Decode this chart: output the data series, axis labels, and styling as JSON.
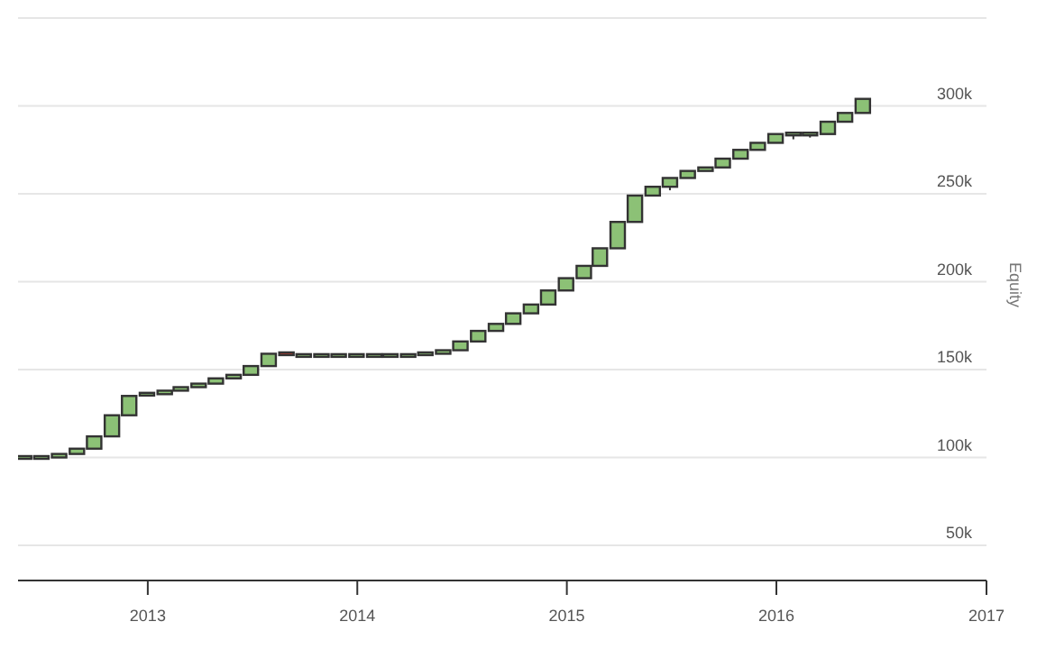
{
  "chart_data": {
    "type": "candlestick",
    "ylabel": "Equity",
    "x": [
      "2012-06",
      "2012-07",
      "2012-08",
      "2012-09",
      "2012-10",
      "2012-11",
      "2012-12",
      "2013-01",
      "2013-02",
      "2013-03",
      "2013-04",
      "2013-05",
      "2013-06",
      "2013-07",
      "2013-08",
      "2013-09",
      "2013-10",
      "2013-11",
      "2013-12",
      "2014-01",
      "2014-02",
      "2014-03",
      "2014-04",
      "2014-05",
      "2014-06",
      "2014-07",
      "2014-08",
      "2014-09",
      "2014-10",
      "2014-11",
      "2014-12",
      "2015-01",
      "2015-02",
      "2015-03",
      "2015-04",
      "2015-05",
      "2015-06",
      "2015-07",
      "2015-08",
      "2015-09",
      "2015-10",
      "2015-11",
      "2015-12",
      "2016-01",
      "2016-02",
      "2016-03",
      "2016-04",
      "2016-05",
      "2016-06"
    ],
    "ohlc": [
      [
        100000,
        100000,
        100000,
        100000
      ],
      [
        100000,
        100000,
        100000,
        100000
      ],
      [
        100000,
        102000,
        100000,
        102000
      ],
      [
        102000,
        105000,
        102000,
        105000
      ],
      [
        105000,
        112000,
        105000,
        112000
      ],
      [
        112000,
        124000,
        112000,
        124000
      ],
      [
        124000,
        135000,
        124000,
        135000
      ],
      [
        135000,
        136000,
        135000,
        136000
      ],
      [
        136000,
        138000,
        136000,
        138000
      ],
      [
        138000,
        140000,
        138000,
        140000
      ],
      [
        140000,
        142000,
        140000,
        142000
      ],
      [
        142000,
        145000,
        142000,
        145000
      ],
      [
        145000,
        147000,
        145000,
        147000
      ],
      [
        147000,
        152000,
        147000,
        152000
      ],
      [
        152000,
        159000,
        152000,
        159000
      ],
      [
        159000,
        159000,
        158000,
        158000
      ],
      [
        158000,
        158000,
        158000,
        158000
      ],
      [
        158000,
        158000,
        158000,
        158000
      ],
      [
        158000,
        158000,
        158000,
        158000
      ],
      [
        158000,
        159000,
        157000,
        158000
      ],
      [
        158000,
        158000,
        158000,
        158000
      ],
      [
        158000,
        158000,
        158000,
        158000
      ],
      [
        158000,
        158000,
        158000,
        158000
      ],
      [
        158000,
        159000,
        158000,
        159000
      ],
      [
        159000,
        161000,
        159000,
        161000
      ],
      [
        161000,
        166000,
        161000,
        166000
      ],
      [
        166000,
        172000,
        166000,
        172000
      ],
      [
        172000,
        176000,
        172000,
        176000
      ],
      [
        176000,
        182000,
        176000,
        182000
      ],
      [
        182000,
        187000,
        182000,
        187000
      ],
      [
        187000,
        195000,
        187000,
        195000
      ],
      [
        195000,
        202000,
        195000,
        202000
      ],
      [
        202000,
        209000,
        202000,
        209000
      ],
      [
        209000,
        219000,
        209000,
        219000
      ],
      [
        219000,
        234000,
        219000,
        234000
      ],
      [
        234000,
        249000,
        234000,
        249000
      ],
      [
        249000,
        254000,
        249000,
        254000
      ],
      [
        254000,
        259000,
        252000,
        259000
      ],
      [
        259000,
        263000,
        259000,
        263000
      ],
      [
        263000,
        265000,
        263000,
        265000
      ],
      [
        265000,
        270000,
        265000,
        270000
      ],
      [
        270000,
        275000,
        270000,
        275000
      ],
      [
        275000,
        279000,
        275000,
        279000
      ],
      [
        279000,
        284000,
        279000,
        284000
      ],
      [
        284000,
        284000,
        281000,
        284000
      ],
      [
        284000,
        284000,
        282000,
        284000
      ],
      [
        284000,
        291000,
        284000,
        291000
      ],
      [
        291000,
        296000,
        291000,
        296000
      ],
      [
        296000,
        304000,
        296000,
        304000
      ]
    ],
    "colors": [
      "#8cc176",
      "#8cc176",
      "#8cc176",
      "#8cc176",
      "#8cc176",
      "#8cc176",
      "#8cc176",
      "#8cc176",
      "#8cc176",
      "#8cc176",
      "#8cc176",
      "#8cc176",
      "#8cc176",
      "#8cc176",
      "#8cc176",
      "#c0392b",
      "#8cc176",
      "#8cc176",
      "#8cc176",
      "#8cc176",
      "#8cc176",
      "#8cc176",
      "#8cc176",
      "#8cc176",
      "#8cc176",
      "#8cc176",
      "#8cc176",
      "#8cc176",
      "#8cc176",
      "#8cc176",
      "#8cc176",
      "#8cc176",
      "#8cc176",
      "#8cc176",
      "#8cc176",
      "#8cc176",
      "#8cc176",
      "#8cc176",
      "#8cc176",
      "#8cc176",
      "#8cc176",
      "#8cc176",
      "#8cc176",
      "#8cc176",
      "#8cc176",
      "#8cc176",
      "#8cc176",
      "#8cc176",
      "#8cc176"
    ],
    "xlim": [
      "2012-05-20",
      "2017-01-01"
    ],
    "xticks": [
      "2013",
      "2014",
      "2015",
      "2016",
      "2017"
    ],
    "ylim": [
      30000,
      350000
    ],
    "yticks": [
      {
        "value": 50000,
        "label": "50k"
      },
      {
        "value": 100000,
        "label": "100k"
      },
      {
        "value": 150000,
        "label": "150k"
      },
      {
        "value": 200000,
        "label": "200k"
      },
      {
        "value": 250000,
        "label": "250k"
      },
      {
        "value": 300000,
        "label": "300k"
      },
      {
        "value": 350000,
        "label": null
      }
    ],
    "grid": "y"
  }
}
